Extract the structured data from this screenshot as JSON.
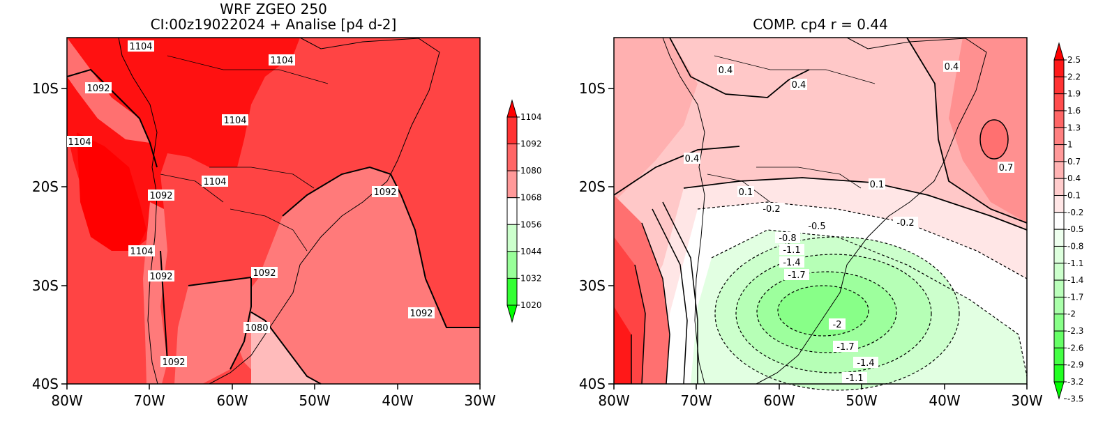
{
  "left_panel": {
    "title_line1": "WRF ZGEO 250",
    "title_line2": "CI:00z19022024 + Analise  [p4 d-2]",
    "x_ticks": [
      "80W",
      "70W",
      "60W",
      "50W",
      "40W",
      "30W"
    ],
    "y_ticks": [
      "10S",
      "20S",
      "30S",
      "40S"
    ],
    "contour_labels": [
      "1104",
      "1104",
      "1092",
      "1104",
      "1104",
      "1104",
      "1092",
      "1092",
      "1104",
      "1092",
      "1092",
      "1092",
      "1080",
      "1092"
    ],
    "colorbar": {
      "labels": [
        "1104",
        "1092",
        "1080",
        "1068",
        "1056",
        "1044",
        "1032",
        "1020"
      ],
      "colors": [
        "#ff0000",
        "#ff3333",
        "#ff6666",
        "#ff9999",
        "#ffffff",
        "#ccffcc",
        "#99ff99",
        "#33ff33",
        "#00ff00"
      ]
    }
  },
  "right_panel": {
    "title": "COMP. cp4   r =  0.44",
    "x_ticks": [
      "80W",
      "70W",
      "60W",
      "50W",
      "40W",
      "30W"
    ],
    "y_ticks": [
      "10S",
      "20S",
      "30S",
      "40S"
    ],
    "contour_labels": [
      "0.4",
      "0.4",
      "0.4",
      "0.4",
      "0.7",
      "0.1",
      "0.1",
      "-0.2",
      "-0.5",
      "-0.2",
      "-0.8",
      "-1.1",
      "-1.4",
      "-1.7",
      "-2",
      "-1.7",
      "-1.4",
      "-1.1"
    ],
    "colorbar": {
      "labels": [
        "2.5",
        "2.2",
        "1.9",
        "1.6",
        "1.3",
        "1",
        "0.7",
        "0.4",
        "0.1",
        "-0.2",
        "-0.5",
        "-0.8",
        "-1.1",
        "-1.4",
        "-1.7",
        "-2",
        "-2.3",
        "-2.6",
        "-2.9",
        "-3.2",
        "-3.5"
      ],
      "colors": [
        "#ff0000",
        "#ff1a1a",
        "#ff3333",
        "#ff4d4d",
        "#ff6666",
        "#ff8080",
        "#ff9999",
        "#ffb3b3",
        "#ffcccc",
        "#ffe6e6",
        "#ffffff",
        "#eeffee",
        "#ddffdd",
        "#ccffcc",
        "#bbffbb",
        "#aaffaa",
        "#88ff88",
        "#66ff66",
        "#44ff44",
        "#22ff22",
        "#00ff00"
      ]
    }
  },
  "colors": {
    "deep_red": "#ff0000",
    "red": "#ff3333",
    "mid_red": "#ff6666",
    "light_red": "#ff9999",
    "white": "#ffffff",
    "light_green": "#ccffcc",
    "green": "#00ff00"
  }
}
